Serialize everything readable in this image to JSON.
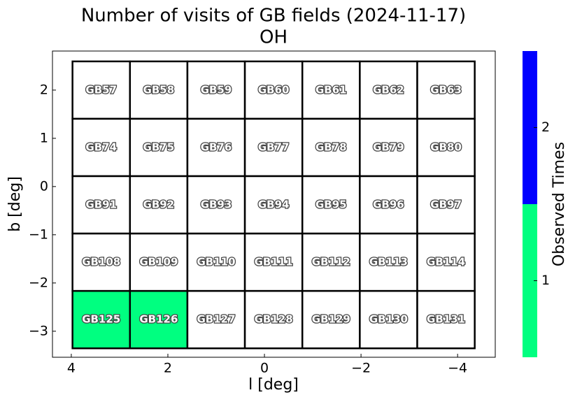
{
  "chart_data": {
    "type": "field-map",
    "title": "Number of visits of GB fields (2024-11-17)",
    "subtitle": "OH",
    "xlabel": "l [deg]",
    "ylabel": "b [deg]",
    "xlim": [
      4.39,
      -4.78
    ],
    "ylim": [
      -3.54,
      2.81
    ],
    "xticks": [
      4,
      2,
      0,
      {
        "value": -2,
        "label": "−2"
      },
      {
        "value": -4,
        "label": "−4"
      }
    ],
    "yticks": [
      {
        "value": -3,
        "label": "−3"
      },
      {
        "value": -2,
        "label": "−2"
      },
      {
        "value": -1,
        "label": "−1"
      },
      0,
      1,
      2
    ],
    "cell_size": 1.19,
    "fields": [
      {
        "name": "GB57",
        "l": 3.38,
        "b": 2.0,
        "visits": null
      },
      {
        "name": "GB58",
        "l": 2.19,
        "b": 2.0,
        "visits": null
      },
      {
        "name": "GB59",
        "l": 1.0,
        "b": 2.0,
        "visits": null
      },
      {
        "name": "GB60",
        "l": -0.19,
        "b": 2.0,
        "visits": null
      },
      {
        "name": "GB61",
        "l": -1.38,
        "b": 2.0,
        "visits": null
      },
      {
        "name": "GB62",
        "l": -2.57,
        "b": 2.0,
        "visits": null
      },
      {
        "name": "GB63",
        "l": -3.76,
        "b": 2.0,
        "visits": null
      },
      {
        "name": "GB74",
        "l": 3.38,
        "b": 0.81,
        "visits": null
      },
      {
        "name": "GB75",
        "l": 2.19,
        "b": 0.81,
        "visits": null
      },
      {
        "name": "GB76",
        "l": 1.0,
        "b": 0.81,
        "visits": null
      },
      {
        "name": "GB77",
        "l": -0.19,
        "b": 0.81,
        "visits": null
      },
      {
        "name": "GB78",
        "l": -1.38,
        "b": 0.81,
        "visits": null
      },
      {
        "name": "GB79",
        "l": -2.57,
        "b": 0.81,
        "visits": null
      },
      {
        "name": "GB80",
        "l": -3.76,
        "b": 0.81,
        "visits": null
      },
      {
        "name": "GB91",
        "l": 3.38,
        "b": -0.38,
        "visits": null
      },
      {
        "name": "GB92",
        "l": 2.19,
        "b": -0.38,
        "visits": null
      },
      {
        "name": "GB93",
        "l": 1.0,
        "b": -0.38,
        "visits": null
      },
      {
        "name": "GB94",
        "l": -0.19,
        "b": -0.38,
        "visits": null
      },
      {
        "name": "GB95",
        "l": -1.38,
        "b": -0.38,
        "visits": null
      },
      {
        "name": "GB96",
        "l": -2.57,
        "b": -0.38,
        "visits": null
      },
      {
        "name": "GB97",
        "l": -3.76,
        "b": -0.38,
        "visits": null
      },
      {
        "name": "GB108",
        "l": 3.38,
        "b": -1.57,
        "visits": null
      },
      {
        "name": "GB109",
        "l": 2.19,
        "b": -1.57,
        "visits": null
      },
      {
        "name": "GB110",
        "l": 1.0,
        "b": -1.57,
        "visits": null
      },
      {
        "name": "GB111",
        "l": -0.19,
        "b": -1.57,
        "visits": null
      },
      {
        "name": "GB112",
        "l": -1.38,
        "b": -1.57,
        "visits": null
      },
      {
        "name": "GB113",
        "l": -2.57,
        "b": -1.57,
        "visits": null
      },
      {
        "name": "GB114",
        "l": -3.76,
        "b": -1.57,
        "visits": null
      },
      {
        "name": "GB125",
        "l": 3.38,
        "b": -2.76,
        "visits": 1
      },
      {
        "name": "GB126",
        "l": 2.19,
        "b": -2.76,
        "visits": 1
      },
      {
        "name": "GB127",
        "l": 1.0,
        "b": -2.76,
        "visits": null
      },
      {
        "name": "GB128",
        "l": -0.19,
        "b": -2.76,
        "visits": null
      },
      {
        "name": "GB129",
        "l": -1.38,
        "b": -2.76,
        "visits": null
      },
      {
        "name": "GB130",
        "l": -2.57,
        "b": -2.76,
        "visits": null
      },
      {
        "name": "GB131",
        "l": -3.76,
        "b": -2.76,
        "visits": null
      }
    ],
    "colorbar": {
      "label": "Observed Times",
      "lim": [
        0.5,
        2.5
      ],
      "ticks": [
        1,
        2
      ],
      "colors": [
        "#00ff80",
        "#0000ff"
      ]
    }
  }
}
